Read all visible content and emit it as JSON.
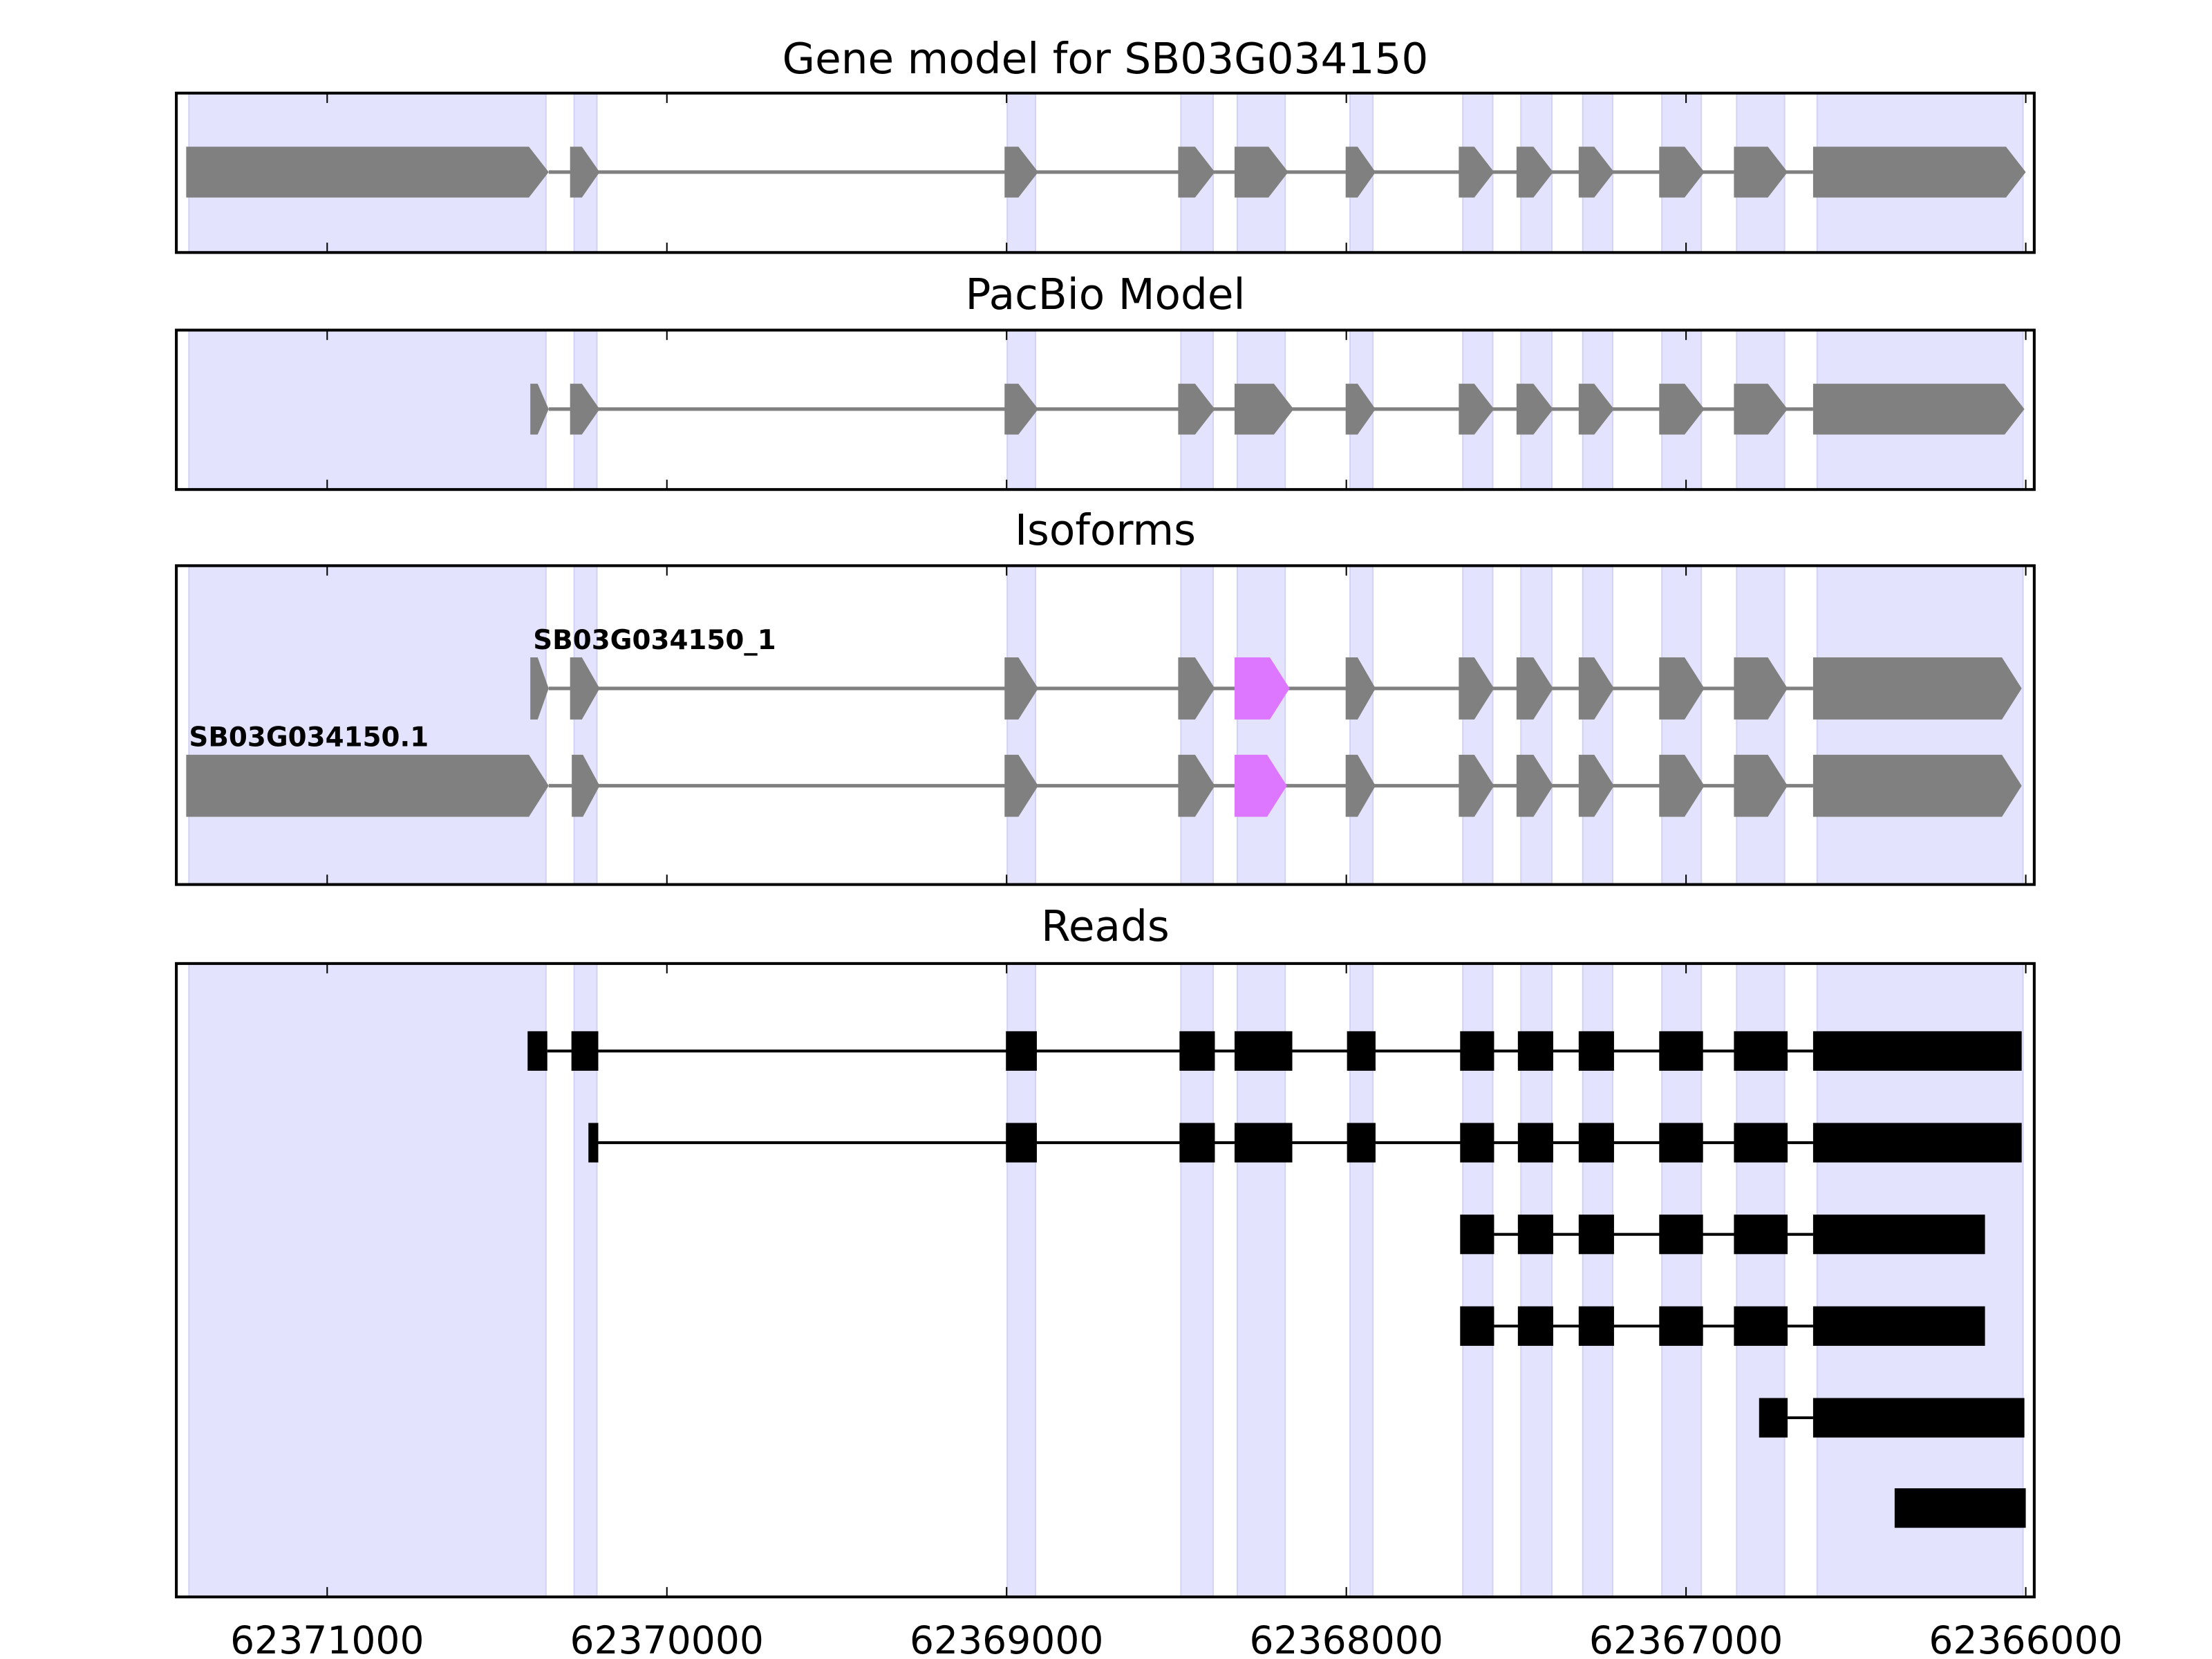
{
  "colors": {
    "shade": "#e3e3fd",
    "shade_edge": "#d2d2f4",
    "exon": "#808080",
    "highlight": "#dd77ff",
    "read": "#000000",
    "frame": "#000000"
  },
  "chart_data": {
    "type": "gene-track",
    "xlim": [
      62371444,
      62365975
    ],
    "xticks": [
      62371000,
      62370000,
      62369000,
      62368000,
      62367000,
      62366000
    ],
    "xtick_labels": [
      "62371000",
      "62370000",
      "62369000",
      "62368000",
      "62367000",
      "62366000"
    ],
    "shaded_exons": [
      [
        62371407,
        62370356
      ],
      [
        62370273,
        62370206
      ],
      [
        62368998,
        62368915
      ],
      [
        62368487,
        62368392
      ],
      [
        62368321,
        62368180
      ],
      [
        62367989,
        62367922
      ],
      [
        62367657,
        62367569
      ],
      [
        62367486,
        62367395
      ],
      [
        62367304,
        62367216
      ],
      [
        62367071,
        62366955
      ],
      [
        62366851,
        62366710
      ],
      [
        62366614,
        62366008
      ]
    ],
    "panels": [
      {
        "title": "Gene model for SB03G034150",
        "kind": "model",
        "tracks": [
          {
            "label": "",
            "exons": [
              [
                62371415,
                62370348
              ],
              [
                62370285,
                62370198
              ],
              [
                62369006,
                62368907
              ],
              [
                62368495,
                62368387
              ],
              [
                62368329,
                62368171
              ],
              [
                62368002,
                62367914
              ],
              [
                62367669,
                62367565
              ],
              [
                62367499,
                62367391
              ],
              [
                62367316,
                62367212
              ],
              [
                62367079,
                62366946
              ],
              [
                62366859,
                62366701
              ],
              [
                62366626,
                62366000
              ]
            ],
            "highlight": []
          }
        ]
      },
      {
        "title": "PacBio Model",
        "kind": "model",
        "tracks": [
          {
            "label": "",
            "exons": [
              [
                62370402,
                62370348
              ],
              [
                62370285,
                62370198
              ],
              [
                62369006,
                62368907
              ],
              [
                62368495,
                62368387
              ],
              [
                62368329,
                62368155
              ],
              [
                62368002,
                62367914
              ],
              [
                62367669,
                62367565
              ],
              [
                62367499,
                62367391
              ],
              [
                62367316,
                62367212
              ],
              [
                62367079,
                62366946
              ],
              [
                62366859,
                62366701
              ],
              [
                62366626,
                62366004
              ]
            ],
            "highlight": []
          }
        ]
      },
      {
        "title": "Isoforms",
        "kind": "model",
        "tracks": [
          {
            "label": "SB03G034150_1",
            "exons": [
              [
                62370402,
                62370348
              ],
              [
                62370285,
                62370198
              ],
              [
                62369006,
                62368907
              ],
              [
                62368495,
                62368387
              ],
              [
                62368329,
                62368167
              ],
              [
                62368002,
                62367914
              ],
              [
                62367669,
                62367565
              ],
              [
                62367499,
                62367391
              ],
              [
                62367316,
                62367212
              ],
              [
                62367079,
                62366946
              ],
              [
                62366859,
                62366701
              ],
              [
                62366626,
                62366012
              ]
            ],
            "highlight": [
              4
            ]
          },
          {
            "label": "SB03G034150.1",
            "exons": [
              [
                62371415,
                62370348
              ],
              [
                62370280,
                62370198
              ],
              [
                62369006,
                62368907
              ],
              [
                62368495,
                62368387
              ],
              [
                62368329,
                62368175
              ],
              [
                62368002,
                62367914
              ],
              [
                62367669,
                62367565
              ],
              [
                62367499,
                62367391
              ],
              [
                62367316,
                62367212
              ],
              [
                62367079,
                62366946
              ],
              [
                62366859,
                62366701
              ],
              [
                62366626,
                62366012
              ]
            ],
            "highlight": [
              4
            ]
          }
        ]
      },
      {
        "title": "Reads",
        "kind": "reads",
        "tracks": [
          {
            "label": "",
            "exons": [
              [
                62370410,
                62370352
              ],
              [
                62370281,
                62370202
              ],
              [
                62369002,
                62368911
              ],
              [
                62368491,
                62368387
              ],
              [
                62368329,
                62368159
              ],
              [
                62367998,
                62367914
              ],
              [
                62367665,
                62367565
              ],
              [
                62367495,
                62367391
              ],
              [
                62367316,
                62367212
              ],
              [
                62367079,
                62366950
              ],
              [
                62366859,
                62366701
              ],
              [
                62366626,
                62366012
              ]
            ],
            "highlight": []
          },
          {
            "label": "",
            "exons": [
              [
                62370231,
                62370202
              ],
              [
                62369002,
                62368911
              ],
              [
                62368491,
                62368387
              ],
              [
                62368329,
                62368159
              ],
              [
                62367998,
                62367914
              ],
              [
                62367665,
                62367565
              ],
              [
                62367495,
                62367391
              ],
              [
                62367316,
                62367212
              ],
              [
                62367079,
                62366950
              ],
              [
                62366859,
                62366701
              ],
              [
                62366626,
                62366012
              ]
            ],
            "highlight": []
          },
          {
            "label": "",
            "exons": [
              [
                62367665,
                62367565
              ],
              [
                62367495,
                62367391
              ],
              [
                62367316,
                62367212
              ],
              [
                62367079,
                62366950
              ],
              [
                62366859,
                62366701
              ],
              [
                62366626,
                62366120
              ]
            ],
            "highlight": []
          },
          {
            "label": "",
            "exons": [
              [
                62367665,
                62367565
              ],
              [
                62367495,
                62367391
              ],
              [
                62367316,
                62367212
              ],
              [
                62367079,
                62366950
              ],
              [
                62366859,
                62366701
              ],
              [
                62366626,
                62366120
              ]
            ],
            "highlight": []
          },
          {
            "label": "",
            "exons": [
              [
                62366785,
                62366701
              ],
              [
                62366626,
                62366004
              ]
            ],
            "highlight": []
          },
          {
            "label": "",
            "exons": [
              [
                62366386,
                62366000
              ]
            ],
            "highlight": []
          }
        ]
      }
    ]
  }
}
